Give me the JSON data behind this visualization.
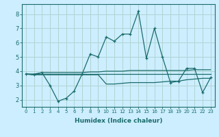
{
  "xlabel": "Humidex (Indice chaleur)",
  "background_color": "#cceeff",
  "grid_color": "#b0d4d4",
  "line_color": "#1a6b6b",
  "xlim": [
    -0.5,
    23.5
  ],
  "ylim": [
    1.5,
    8.7
  ],
  "yticks": [
    2,
    3,
    4,
    5,
    6,
    7,
    8
  ],
  "xticks": [
    0,
    1,
    2,
    3,
    4,
    5,
    6,
    7,
    8,
    9,
    10,
    11,
    12,
    13,
    14,
    15,
    16,
    17,
    18,
    19,
    20,
    21,
    22,
    23
  ],
  "series": {
    "main": [
      3.8,
      3.75,
      3.9,
      3.0,
      1.9,
      2.1,
      2.6,
      3.8,
      5.2,
      5.0,
      6.4,
      6.1,
      6.6,
      6.6,
      8.2,
      4.9,
      7.0,
      5.0,
      3.2,
      3.3,
      4.2,
      4.2,
      2.5,
      3.55
    ],
    "upper": [
      3.8,
      3.8,
      3.9,
      3.9,
      3.9,
      3.9,
      3.9,
      3.9,
      3.95,
      3.95,
      4.0,
      4.0,
      4.0,
      4.05,
      4.05,
      4.05,
      4.05,
      4.05,
      4.05,
      4.05,
      4.05,
      4.1,
      4.1,
      4.1
    ],
    "mid": [
      3.8,
      3.8,
      3.8,
      3.8,
      3.8,
      3.8,
      3.8,
      3.8,
      3.8,
      3.8,
      3.8,
      3.8,
      3.8,
      3.8,
      3.8,
      3.8,
      3.8,
      3.8,
      3.8,
      3.8,
      3.8,
      3.8,
      3.8,
      3.8
    ],
    "lower": [
      3.8,
      3.75,
      3.75,
      3.75,
      3.75,
      3.75,
      3.75,
      3.75,
      3.75,
      3.75,
      3.1,
      3.1,
      3.15,
      3.2,
      3.2,
      3.2,
      3.2,
      3.25,
      3.3,
      3.3,
      3.4,
      3.45,
      3.5,
      3.5
    ]
  }
}
